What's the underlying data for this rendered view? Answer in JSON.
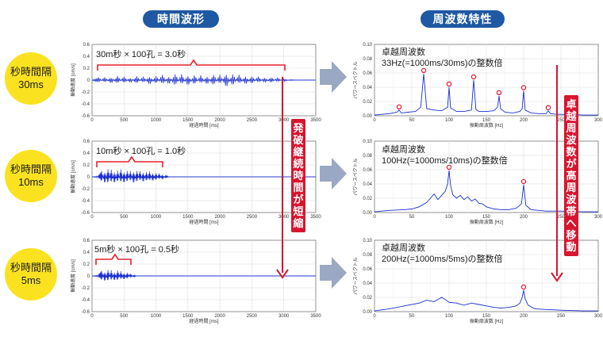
{
  "headers": {
    "time": "時間波形",
    "freq": "周波数特性"
  },
  "rows": [
    {
      "interval_line1": "秒時間隔",
      "interval_line2": "30ms",
      "time_annotation": "30m秒 × 100孔 = 3.0秒",
      "freq_title": "卓越周波数",
      "freq_subtitle": "33Hz(=1000ms/30ms)の整数倍"
    },
    {
      "interval_line1": "秒時間隔",
      "interval_line2": "10ms",
      "time_annotation": "10m秒 × 100孔 = 1.0秒",
      "freq_title": "卓越周波数",
      "freq_subtitle": "100Hz(=1000ms/10ms)の整数倍"
    },
    {
      "interval_line1": "秒時間隔",
      "interval_line2": "5ms",
      "time_annotation": "5m秒 × 100孔 = 0.5秒",
      "freq_title": "卓越周波数",
      "freq_subtitle": "200Hz(=1000ms/5ms)の整数倍"
    }
  ],
  "callouts": {
    "time_chars": [
      "発",
      "破",
      "継",
      "続",
      "時",
      "間",
      "が",
      "短",
      "縮"
    ],
    "freq_chars": [
      "卓",
      "越",
      "周",
      "波",
      "数",
      "が",
      "高",
      "周",
      "波",
      "帯",
      "へ",
      "移",
      "動"
    ]
  },
  "colors": {
    "header": "#1f58a3",
    "circle": "#fbe221",
    "series": "#1a2fd1",
    "callout": "#d7152f",
    "brace": "#e8202a",
    "arrow": "#9aa8c4"
  },
  "chart_data": [
    {
      "type": "line",
      "chart": "time-30ms",
      "xlabel": "経過時間 [ms]",
      "ylabel": "振動速度 [cm/s]",
      "xlim": [
        0,
        3500
      ],
      "ylim": [
        -0.6,
        0.6
      ],
      "xticks": [
        0,
        500,
        1000,
        1500,
        2000,
        2500,
        3000,
        3500
      ],
      "yticks": [
        0.6,
        0.4,
        0.2,
        0,
        -0.2,
        -0.4,
        -0.6
      ],
      "x": [
        0,
        100,
        200,
        300,
        400,
        500,
        600,
        700,
        800,
        900,
        1000,
        1100,
        1200,
        1300,
        1400,
        1500,
        1600,
        1700,
        1800,
        1900,
        2000,
        2100,
        2200,
        2300,
        2400,
        2500,
        2600,
        2700,
        2800,
        2900,
        3000,
        3100,
        3200,
        3300,
        3400,
        3500
      ],
      "values": [
        0,
        0.05,
        -0.05,
        0.06,
        -0.07,
        0.06,
        -0.05,
        0.07,
        -0.06,
        0.08,
        -0.07,
        0.09,
        -0.08,
        0.11,
        -0.1,
        0.1,
        -0.09,
        0.08,
        -0.08,
        0.1,
        -0.09,
        0.13,
        -0.11,
        0.09,
        -0.08,
        0.07,
        -0.06,
        0.05,
        -0.05,
        0.04,
        -0.03,
        0.01,
        0,
        0,
        0,
        0
      ],
      "grid": true
    },
    {
      "type": "line",
      "chart": "time-10ms",
      "xlabel": "経過時間 [ms]",
      "ylabel": "振動速度 [cm/s]",
      "xlim": [
        0,
        3500
      ],
      "ylim": [
        -0.6,
        0.6
      ],
      "xticks": [
        0,
        500,
        1000,
        1500,
        2000,
        2500,
        3000,
        3500
      ],
      "yticks": [
        0.6,
        0.4,
        0.2,
        0,
        -0.2,
        -0.4,
        -0.6
      ],
      "x": [
        0,
        100,
        150,
        200,
        250,
        300,
        350,
        400,
        450,
        500,
        550,
        600,
        650,
        700,
        750,
        800,
        850,
        900,
        950,
        1000,
        1050,
        1100,
        1150,
        1200,
        1500,
        2000,
        2500,
        3000,
        3500
      ],
      "values": [
        0,
        0.02,
        0.1,
        -0.12,
        0.14,
        -0.13,
        0.12,
        -0.11,
        0.13,
        -0.12,
        0.11,
        -0.1,
        0.12,
        -0.11,
        0.1,
        -0.1,
        0.09,
        -0.09,
        0.08,
        -0.07,
        0.06,
        -0.05,
        0.03,
        0,
        0,
        0,
        0,
        0,
        0
      ],
      "grid": true
    },
    {
      "type": "line",
      "chart": "time-5ms",
      "xlabel": "経過時間 [ms]",
      "ylabel": "振動速度 [cm/s]",
      "xlim": [
        0,
        3500
      ],
      "ylim": [
        -0.6,
        0.6
      ],
      "xticks": [
        0,
        500,
        1000,
        1500,
        2000,
        2500,
        3000,
        3500
      ],
      "yticks": [
        0.6,
        0.4,
        0.2,
        0,
        -0.2,
        -0.4,
        -0.6
      ],
      "x": [
        0,
        100,
        150,
        200,
        250,
        300,
        350,
        400,
        450,
        500,
        550,
        600,
        650,
        700,
        1000,
        1500,
        2000,
        2500,
        3000,
        3500
      ],
      "values": [
        0,
        0.02,
        0.09,
        -0.1,
        0.11,
        -0.1,
        0.09,
        -0.1,
        0.08,
        -0.07,
        0.06,
        -0.04,
        0.02,
        0,
        0,
        0,
        0,
        0,
        0,
        0
      ],
      "grid": true
    },
    {
      "type": "line",
      "chart": "freq-30ms",
      "xlabel": "振動周波数 [Hz]",
      "ylabel": "パワースペクトル",
      "xlim": [
        0,
        300
      ],
      "ylim": [
        0,
        0.1
      ],
      "xticks": [
        0,
        50,
        100,
        150,
        200,
        250,
        300
      ],
      "yticks": [
        0.1,
        0.08,
        0.06,
        0.04,
        0.02,
        0.0
      ],
      "x": [
        0,
        10,
        20,
        30,
        33,
        36,
        45,
        55,
        62,
        66,
        70,
        80,
        90,
        98,
        100,
        102,
        110,
        120,
        130,
        133,
        136,
        140,
        150,
        160,
        165,
        167,
        169,
        175,
        185,
        195,
        198,
        200,
        202,
        210,
        220,
        230,
        233,
        236,
        245,
        260,
        280,
        300
      ],
      "values": [
        0.001,
        0.002,
        0.003,
        0.005,
        0.008,
        0.004,
        0.005,
        0.006,
        0.012,
        0.059,
        0.01,
        0.008,
        0.007,
        0.012,
        0.04,
        0.011,
        0.006,
        0.006,
        0.008,
        0.05,
        0.009,
        0.006,
        0.006,
        0.007,
        0.012,
        0.028,
        0.01,
        0.005,
        0.004,
        0.006,
        0.01,
        0.035,
        0.008,
        0.004,
        0.003,
        0.003,
        0.007,
        0.003,
        0.002,
        0.002,
        0.001,
        0.001
      ],
      "markers": [
        33,
        66,
        100,
        133,
        167,
        200,
        233
      ],
      "grid": true
    },
    {
      "type": "line",
      "chart": "freq-10ms",
      "xlabel": "振動周波数 [Hz]",
      "ylabel": "パワースペクトル",
      "xlim": [
        0,
        300
      ],
      "ylim": [
        0,
        0.1
      ],
      "xticks": [
        0,
        50,
        100,
        150,
        200,
        250,
        300
      ],
      "yticks": [
        0.1,
        0.08,
        0.06,
        0.04,
        0.02,
        0.0
      ],
      "x": [
        0,
        20,
        40,
        50,
        60,
        70,
        75,
        80,
        85,
        90,
        95,
        98,
        100,
        102,
        105,
        110,
        115,
        120,
        125,
        130,
        135,
        140,
        145,
        150,
        160,
        170,
        180,
        190,
        197,
        200,
        203,
        210,
        230,
        250,
        280,
        300
      ],
      "values": [
        0.001,
        0.003,
        0.004,
        0.005,
        0.008,
        0.014,
        0.02,
        0.026,
        0.018,
        0.024,
        0.03,
        0.04,
        0.059,
        0.038,
        0.025,
        0.02,
        0.024,
        0.018,
        0.022,
        0.016,
        0.019,
        0.013,
        0.012,
        0.008,
        0.005,
        0.004,
        0.004,
        0.006,
        0.012,
        0.039,
        0.01,
        0.004,
        0.002,
        0.002,
        0.001,
        0.001
      ],
      "markers": [
        100,
        200
      ],
      "grid": true
    },
    {
      "type": "line",
      "chart": "freq-5ms",
      "xlabel": "振動周波数 [Hz]",
      "ylabel": "パワースペクトル",
      "xlim": [
        0,
        300
      ],
      "ylim": [
        0,
        0.1
      ],
      "xticks": [
        0,
        50,
        100,
        150,
        200,
        250,
        300
      ],
      "yticks": [
        0.1,
        0.08,
        0.06,
        0.04,
        0.02,
        0.0
      ],
      "x": [
        0,
        20,
        40,
        60,
        70,
        80,
        90,
        95,
        100,
        110,
        120,
        130,
        140,
        150,
        160,
        170,
        180,
        190,
        195,
        198,
        200,
        202,
        206,
        215,
        230,
        250,
        280,
        300
      ],
      "values": [
        0.001,
        0.004,
        0.008,
        0.012,
        0.016,
        0.014,
        0.02,
        0.017,
        0.013,
        0.012,
        0.009,
        0.012,
        0.01,
        0.008,
        0.006,
        0.005,
        0.006,
        0.008,
        0.012,
        0.02,
        0.03,
        0.018,
        0.009,
        0.004,
        0.003,
        0.002,
        0.001,
        0.001
      ],
      "markers": [
        200
      ],
      "grid": true
    }
  ]
}
